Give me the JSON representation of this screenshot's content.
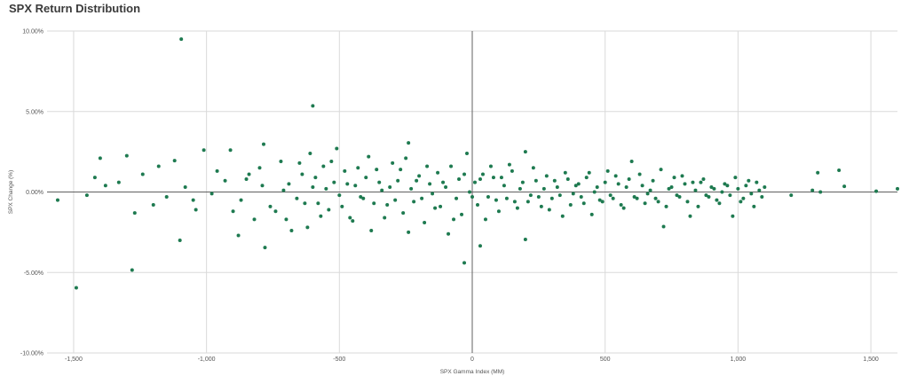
{
  "colors": {
    "point": "#1e7a50",
    "grid": "#dadada",
    "zero_line": "#606060",
    "text": "#555555",
    "title": "#3a3a3a"
  },
  "chart_data": {
    "type": "scatter",
    "title": "SPX Return Distribution",
    "xlabel": "SPX Gamma Index (MM)",
    "ylabel": "SPX Change (%)",
    "xlim": [
      -1600,
      1600
    ],
    "ylim": [
      -10,
      10
    ],
    "x_ticks": [
      -1500,
      -1000,
      -500,
      0,
      500,
      1000,
      1500
    ],
    "x_tick_labels": [
      "-1,500",
      "-1,000",
      "-500",
      "0",
      "500",
      "1,000",
      "1,500"
    ],
    "y_ticks": [
      10,
      5,
      0,
      -5,
      -10
    ],
    "y_tick_labels": [
      "10.00%",
      "5.00%",
      "0.00%",
      "-5.00%",
      "-10.00%"
    ],
    "grid": true,
    "legend": "none",
    "series": [
      {
        "points": [
          [
            -1095,
            9.5
          ],
          [
            -600,
            5.35
          ],
          [
            -1490,
            -5.95
          ],
          [
            -1280,
            -4.85
          ],
          [
            -30,
            -4.4
          ],
          [
            -1100,
            -3.0
          ],
          [
            -780,
            -3.45
          ],
          [
            30,
            -3.35
          ],
          [
            200,
            -2.95
          ],
          [
            -240,
            3.05
          ],
          [
            -785,
            2.97
          ],
          [
            -1050,
            -0.5
          ],
          [
            -900,
            -1.2
          ],
          [
            -850,
            0.8
          ],
          [
            -800,
            1.5
          ],
          [
            -760,
            -0.9
          ],
          [
            -720,
            1.9
          ],
          [
            -700,
            -1.7
          ],
          [
            -690,
            0.5
          ],
          [
            -660,
            -0.4
          ],
          [
            -640,
            1.1
          ],
          [
            -620,
            -2.2
          ],
          [
            -610,
            2.4
          ],
          [
            -600,
            0.3
          ],
          [
            -580,
            -0.7
          ],
          [
            -560,
            1.6
          ],
          [
            -540,
            -1.1
          ],
          [
            -520,
            0.6
          ],
          [
            -510,
            2.7
          ],
          [
            -500,
            -0.2
          ],
          [
            -480,
            1.3
          ],
          [
            -460,
            -1.6
          ],
          [
            -440,
            0.4
          ],
          [
            -420,
            -0.3
          ],
          [
            -400,
            0.9
          ],
          [
            -380,
            -2.4
          ],
          [
            -360,
            1.4
          ],
          [
            -340,
            0.1
          ],
          [
            -320,
            -0.8
          ],
          [
            -300,
            1.8
          ],
          [
            -290,
            -0.5
          ],
          [
            -280,
            0.7
          ],
          [
            -260,
            -1.3
          ],
          [
            -250,
            2.1
          ],
          [
            -230,
            0.2
          ],
          [
            -220,
            -0.6
          ],
          [
            -200,
            1.0
          ],
          [
            -180,
            -1.9
          ],
          [
            -160,
            0.5
          ],
          [
            -150,
            -0.1
          ],
          [
            -130,
            1.2
          ],
          [
            -120,
            -0.9
          ],
          [
            -100,
            0.3
          ],
          [
            -90,
            -2.6
          ],
          [
            -80,
            1.6
          ],
          [
            -60,
            -0.4
          ],
          [
            -50,
            0.8
          ],
          [
            -40,
            -1.4
          ],
          [
            -20,
            2.4
          ],
          [
            -10,
            0.0
          ],
          [
            10,
            0.6
          ],
          [
            20,
            -0.8
          ],
          [
            40,
            1.1
          ],
          [
            60,
            -0.3
          ],
          [
            80,
            0.9
          ],
          [
            100,
            -1.2
          ],
          [
            120,
            0.4
          ],
          [
            140,
            1.7
          ],
          [
            160,
            -0.6
          ],
          [
            180,
            0.2
          ],
          [
            200,
            2.5
          ],
          [
            220,
            -0.2
          ],
          [
            240,
            0.7
          ],
          [
            260,
            -0.9
          ],
          [
            280,
            1.0
          ],
          [
            300,
            -0.4
          ],
          [
            320,
            0.3
          ],
          [
            340,
            -1.5
          ],
          [
            360,
            0.8
          ],
          [
            380,
            -0.1
          ],
          [
            400,
            0.5
          ],
          [
            420,
            -0.7
          ],
          [
            440,
            1.2
          ],
          [
            460,
            0.0
          ],
          [
            480,
            -0.5
          ],
          [
            500,
            0.6
          ],
          [
            520,
            -0.2
          ],
          [
            540,
            1.0
          ],
          [
            560,
            -0.8
          ],
          [
            580,
            0.3
          ],
          [
            600,
            1.9
          ],
          [
            620,
            -0.4
          ],
          [
            640,
            0.4
          ],
          [
            660,
            -0.1
          ],
          [
            680,
            0.7
          ],
          [
            700,
            -0.6
          ],
          [
            720,
            -2.15
          ],
          [
            740,
            0.2
          ],
          [
            760,
            0.9
          ],
          [
            780,
            -0.3
          ],
          [
            800,
            0.5
          ],
          [
            820,
            -1.5
          ],
          [
            840,
            0.1
          ],
          [
            860,
            0.6
          ],
          [
            880,
            -0.2
          ],
          [
            900,
            0.3
          ],
          [
            920,
            -0.5
          ],
          [
            940,
            0.0
          ],
          [
            960,
            0.4
          ],
          [
            980,
            -1.5
          ],
          [
            1000,
            0.2
          ],
          [
            1020,
            -0.4
          ],
          [
            1040,
            0.7
          ],
          [
            1060,
            -0.9
          ],
          [
            1080,
            0.1
          ],
          [
            1100,
            0.3
          ],
          [
            1200,
            -0.2
          ],
          [
            1280,
            0.1
          ],
          [
            1300,
            1.2
          ],
          [
            1310,
            0.0
          ],
          [
            1380,
            1.35
          ],
          [
            1400,
            0.35
          ],
          [
            1520,
            0.05
          ],
          [
            1600,
            0.2
          ],
          [
            -1560,
            -0.5
          ],
          [
            -1450,
            -0.2
          ],
          [
            -1420,
            0.9
          ],
          [
            -1400,
            2.1
          ],
          [
            -1380,
            0.4
          ],
          [
            -1330,
            0.6
          ],
          [
            -1300,
            2.25
          ],
          [
            -1270,
            -1.3
          ],
          [
            -1240,
            1.1
          ],
          [
            -1200,
            -0.8
          ],
          [
            -1180,
            1.6
          ],
          [
            -1150,
            -0.3
          ],
          [
            -1120,
            1.95
          ],
          [
            -1080,
            0.3
          ],
          [
            -1040,
            -1.1
          ],
          [
            -1010,
            2.6
          ],
          [
            -980,
            -0.1
          ],
          [
            -960,
            1.3
          ],
          [
            -930,
            0.7
          ],
          [
            -910,
            2.6
          ],
          [
            -880,
            -2.7
          ],
          [
            -870,
            -0.5
          ],
          [
            -840,
            1.1
          ],
          [
            -820,
            -1.7
          ],
          [
            -790,
            0.4
          ],
          [
            -740,
            -1.2
          ],
          [
            -710,
            0.1
          ],
          [
            -680,
            -2.4
          ],
          [
            -650,
            1.8
          ],
          [
            -630,
            -0.7
          ],
          [
            -590,
            0.9
          ],
          [
            -570,
            -1.5
          ],
          [
            -550,
            0.2
          ],
          [
            -530,
            1.9
          ],
          [
            -490,
            -0.9
          ],
          [
            -470,
            0.5
          ],
          [
            -450,
            -1.8
          ],
          [
            -430,
            1.5
          ],
          [
            -410,
            -0.4
          ],
          [
            -390,
            2.2
          ],
          [
            -370,
            -0.7
          ],
          [
            -350,
            0.6
          ],
          [
            -330,
            -1.6
          ],
          [
            -310,
            0.3
          ],
          [
            -270,
            1.4
          ],
          [
            -240,
            -2.5
          ],
          [
            -210,
            0.7
          ],
          [
            -190,
            -0.4
          ],
          [
            -170,
            1.6
          ],
          [
            -140,
            -1.0
          ],
          [
            -110,
            0.6
          ],
          [
            -70,
            -1.7
          ],
          [
            -30,
            1.1
          ],
          [
            0,
            -0.3
          ],
          [
            30,
            0.8
          ],
          [
            50,
            -1.7
          ],
          [
            70,
            1.6
          ],
          [
            90,
            -0.5
          ],
          [
            110,
            0.9
          ],
          [
            130,
            -0.4
          ],
          [
            150,
            1.3
          ],
          [
            170,
            -1.0
          ],
          [
            190,
            0.6
          ],
          [
            210,
            -0.6
          ],
          [
            230,
            1.5
          ],
          [
            250,
            -0.3
          ],
          [
            270,
            0.2
          ],
          [
            290,
            -1.1
          ],
          [
            310,
            0.7
          ],
          [
            330,
            -0.2
          ],
          [
            350,
            1.2
          ],
          [
            370,
            -0.8
          ],
          [
            390,
            0.4
          ],
          [
            410,
            -0.3
          ],
          [
            430,
            0.9
          ],
          [
            450,
            -1.4
          ],
          [
            470,
            0.3
          ],
          [
            490,
            -0.6
          ],
          [
            510,
            1.3
          ],
          [
            530,
            -0.4
          ],
          [
            550,
            0.5
          ],
          [
            570,
            -1.0
          ],
          [
            590,
            0.8
          ],
          [
            610,
            -0.3
          ],
          [
            630,
            1.1
          ],
          [
            650,
            -0.7
          ],
          [
            670,
            0.1
          ],
          [
            690,
            -0.4
          ],
          [
            710,
            1.4
          ],
          [
            730,
            -0.9
          ],
          [
            750,
            0.3
          ],
          [
            770,
            -0.2
          ],
          [
            790,
            1.0
          ],
          [
            810,
            -0.6
          ],
          [
            830,
            0.6
          ],
          [
            850,
            -0.9
          ],
          [
            870,
            0.8
          ],
          [
            890,
            -0.3
          ],
          [
            910,
            0.2
          ],
          [
            930,
            -0.7
          ],
          [
            950,
            0.5
          ],
          [
            970,
            -0.2
          ],
          [
            990,
            0.9
          ],
          [
            1010,
            -0.6
          ],
          [
            1030,
            0.4
          ],
          [
            1050,
            -0.1
          ],
          [
            1070,
            0.6
          ],
          [
            1090,
            -0.3
          ]
        ]
      }
    ]
  }
}
